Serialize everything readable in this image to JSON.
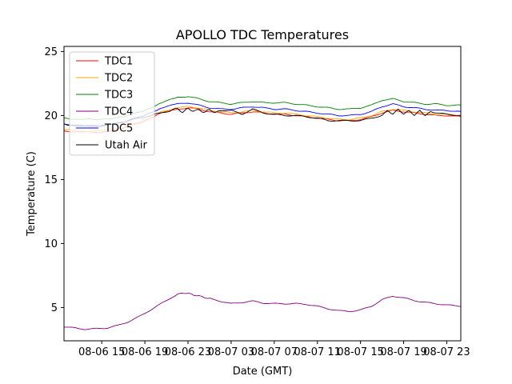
{
  "chart_data": {
    "type": "line",
    "title": "APOLLO TDC Temperatures",
    "xlabel": "Date (GMT)",
    "ylabel": "Temperature (C)",
    "x_unit": "hours since 08-06 00:00 GMT",
    "xlim": [
      11.5,
      48.3
    ],
    "ylim": [
      2.4,
      25.4
    ],
    "y_ticks": [
      5,
      10,
      15,
      20,
      25
    ],
    "y_tick_labels": [
      "5",
      "10",
      "15",
      "20",
      "25"
    ],
    "x_ticks": [
      15,
      19,
      23,
      27,
      31,
      35,
      39,
      43,
      47
    ],
    "x_tick_labels": [
      "08-06 15",
      "08-06 19",
      "08-06 23",
      "08-07 03",
      "08-07 07",
      "08-07 11",
      "08-07 15",
      "08-07 19",
      "08-07 23"
    ],
    "grid": false,
    "legend_position": "upper-left",
    "series": [
      {
        "name": "TDC1",
        "color": "#ff0000",
        "x": [
          11.5,
          13,
          15,
          17,
          19,
          20.5,
          22,
          23,
          24,
          25,
          26,
          27,
          28,
          29,
          30,
          31,
          32,
          33,
          34,
          35,
          36,
          37,
          38,
          39,
          40,
          41,
          42,
          43,
          44,
          45,
          46,
          47,
          48.3
        ],
        "y": [
          18.8,
          18.7,
          18.7,
          19.0,
          19.6,
          20.2,
          20.5,
          20.6,
          20.5,
          20.3,
          20.2,
          20.1,
          20.2,
          20.3,
          20.2,
          20.1,
          20.1,
          20.0,
          19.9,
          19.8,
          19.7,
          19.6,
          19.6,
          19.7,
          19.9,
          20.2,
          20.4,
          20.3,
          20.2,
          20.1,
          20.0,
          20.0,
          19.9
        ]
      },
      {
        "name": "TDC2",
        "color": "#ffa500",
        "x": [
          11.5,
          13,
          15,
          17,
          19,
          20.5,
          22,
          23,
          24,
          25,
          26,
          27,
          28,
          29,
          30,
          31,
          32,
          33,
          34,
          35,
          36,
          37,
          38,
          39,
          40,
          41,
          42,
          43,
          44,
          45,
          46,
          47,
          48.3
        ],
        "y": [
          18.9,
          18.8,
          18.8,
          19.1,
          19.7,
          20.3,
          20.6,
          20.7,
          20.6,
          20.4,
          20.3,
          20.2,
          20.3,
          20.4,
          20.3,
          20.2,
          20.2,
          20.1,
          20.0,
          19.9,
          19.8,
          19.7,
          19.7,
          19.8,
          20.0,
          20.3,
          20.5,
          20.4,
          20.3,
          20.2,
          20.1,
          20.1,
          20.0
        ]
      },
      {
        "name": "TDC3",
        "color": "#008000",
        "x": [
          11.5,
          13,
          15,
          17,
          19,
          20.5,
          22,
          23,
          24,
          25,
          26,
          27,
          28,
          29,
          30,
          31,
          32,
          33,
          34,
          35,
          36,
          37,
          38,
          39,
          40,
          41,
          42,
          43,
          44,
          45,
          46,
          47,
          48.3
        ],
        "y": [
          19.8,
          19.7,
          19.7,
          19.9,
          20.4,
          21.0,
          21.4,
          21.5,
          21.3,
          21.1,
          21.0,
          20.9,
          21.0,
          21.1,
          21.0,
          21.0,
          21.0,
          20.9,
          20.8,
          20.7,
          20.6,
          20.5,
          20.5,
          20.6,
          20.8,
          21.2,
          21.3,
          21.1,
          21.0,
          20.9,
          20.9,
          20.8,
          20.8
        ]
      },
      {
        "name": "TDC4",
        "color": "#800080",
        "x": [
          11.5,
          12.5,
          13.5,
          14.5,
          15.5,
          16.5,
          17.5,
          18.5,
          19.5,
          20.5,
          21.5,
          22,
          22.5,
          23,
          23.5,
          24,
          24.5,
          25,
          26,
          27,
          28,
          29,
          30,
          31,
          32,
          33,
          34,
          35,
          36,
          37,
          38,
          39,
          40,
          41,
          42,
          43,
          44,
          45,
          46,
          47,
          48.3
        ],
        "y": [
          3.5,
          3.4,
          3.3,
          3.35,
          3.4,
          3.6,
          3.9,
          4.3,
          4.8,
          5.3,
          5.8,
          6.0,
          6.15,
          6.1,
          6.0,
          5.9,
          5.8,
          5.7,
          5.5,
          5.3,
          5.4,
          5.5,
          5.35,
          5.3,
          5.3,
          5.3,
          5.25,
          5.1,
          4.9,
          4.75,
          4.7,
          4.8,
          5.1,
          5.6,
          5.9,
          5.75,
          5.55,
          5.4,
          5.3,
          5.2,
          5.1
        ]
      },
      {
        "name": "TDC5",
        "color": "#0000ff",
        "x": [
          11.5,
          13,
          15,
          17,
          19,
          20.5,
          22,
          23,
          24,
          25,
          26,
          27,
          28,
          29,
          30,
          31,
          32,
          33,
          34,
          35,
          36,
          37,
          38,
          39,
          40,
          41,
          42,
          43,
          44,
          45,
          46,
          47,
          48.3
        ],
        "y": [
          19.3,
          19.2,
          19.2,
          19.5,
          20.0,
          20.6,
          20.9,
          21.0,
          20.8,
          20.6,
          20.5,
          20.5,
          20.6,
          20.7,
          20.6,
          20.5,
          20.5,
          20.4,
          20.3,
          20.2,
          20.1,
          20.0,
          20.0,
          20.1,
          20.3,
          20.7,
          20.9,
          20.7,
          20.6,
          20.5,
          20.4,
          20.4,
          20.3
        ]
      },
      {
        "name": "Utah Air",
        "color": "#000000",
        "x": [
          11.5,
          12,
          13,
          14,
          15,
          16,
          17,
          18,
          19,
          20,
          21,
          21.5,
          22,
          22.5,
          23,
          23.5,
          24,
          24.5,
          25,
          25.5,
          26,
          27,
          28,
          29,
          30,
          31,
          32,
          33,
          34,
          35,
          36,
          37,
          38,
          39,
          40,
          41,
          41.5,
          42,
          42.5,
          43,
          43.5,
          44,
          44.5,
          45,
          45.5,
          46,
          47,
          48.3
        ],
        "y": [
          19.4,
          19.2,
          19.3,
          19.1,
          19.2,
          19.3,
          19.5,
          19.7,
          19.9,
          20.1,
          20.3,
          20.4,
          20.6,
          20.2,
          20.6,
          20.3,
          20.5,
          20.2,
          20.5,
          20.2,
          20.4,
          20.4,
          20.1,
          20.5,
          20.2,
          20.1,
          20.0,
          20.0,
          19.9,
          19.8,
          19.6,
          19.6,
          19.6,
          19.6,
          19.8,
          20.0,
          20.4,
          20.1,
          20.5,
          20.1,
          20.4,
          20.0,
          20.4,
          20.0,
          20.3,
          20.2,
          20.1,
          20.0
        ]
      }
    ]
  }
}
